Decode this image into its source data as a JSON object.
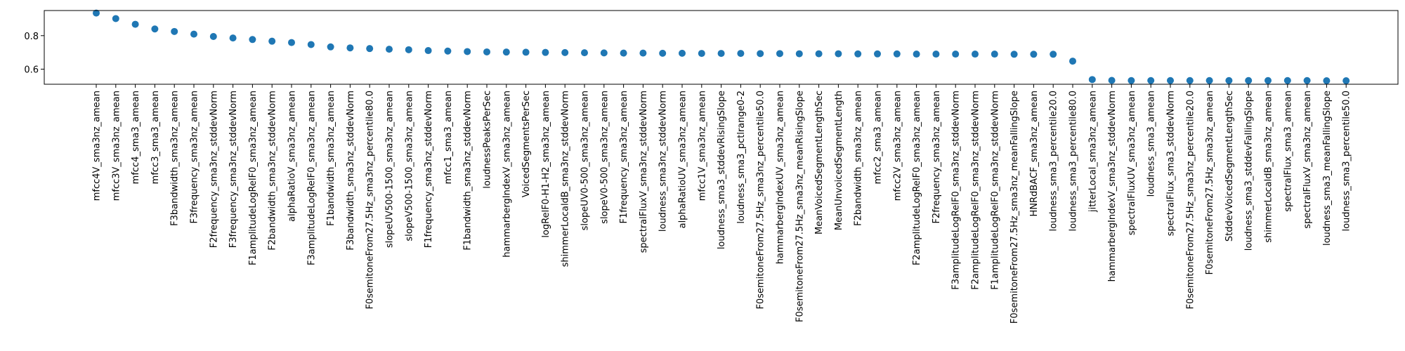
{
  "chart_data": {
    "type": "scatter",
    "title": "",
    "xlabel": "",
    "ylabel": "",
    "ylim": [
      0.51,
      0.95
    ],
    "yticks": [
      0.6,
      0.8
    ],
    "ytick_labels": [
      "0.6",
      "0.8"
    ],
    "grid": false,
    "legend": "none",
    "colors": {
      "marker": "#1f77b4",
      "axis": "#000000",
      "background": "#ffffff"
    },
    "categories": [
      "mfcc4V_sma3nz_amean",
      "mfcc3V_sma3nz_amean",
      "mfcc4_sma3_amean",
      "mfcc3_sma3_amean",
      "F3bandwidth_sma3nz_amean",
      "F3frequency_sma3nz_amean",
      "F2frequency_sma3nz_stddevNorm",
      "F3frequency_sma3nz_stddevNorm",
      "F1amplitudeLogRelF0_sma3nz_amean",
      "F2bandwidth_sma3nz_stddevNorm",
      "alphaRatioV_sma3nz_amean",
      "F3amplitudeLogRelF0_sma3nz_amean",
      "F1bandwidth_sma3nz_amean",
      "F3bandwidth_sma3nz_stddevNorm",
      "F0semitoneFrom27.5Hz_sma3nz_percentile80.0",
      "slopeUV500-1500_sma3nz_amean",
      "slopeV500-1500_sma3nz_amean",
      "F1frequency_sma3nz_stddevNorm",
      "mfcc1_sma3_amean",
      "F1bandwidth_sma3nz_stddevNorm",
      "loudnessPeaksPerSec",
      "hammarbergIndexV_sma3nz_amean",
      "VoicedSegmentsPerSec",
      "logRelF0-H1-H2_sma3nz_amean",
      "shimmerLocaldB_sma3nz_stddevNorm",
      "slopeUV0-500_sma3nz_amean",
      "slopeV0-500_sma3nz_amean",
      "F1frequency_sma3nz_amean",
      "spectralFluxV_sma3nz_stddevNorm",
      "loudness_sma3nz_stddevNorm",
      "alphaRatioUV_sma3nz_amean",
      "mfcc1V_sma3nz_amean",
      "loudness_sma3_stddevRisingSlope",
      "loudness_sma3_pctlrange0-2",
      "F0semitoneFrom27.5Hz_sma3nz_percentile50.0",
      "hammarbergIndexUV_sma3nz_amean",
      "F0semitoneFrom27.5Hz_sma3nz_meanRisingSlope",
      "MeanVoicedSegmentLengthSec",
      "MeanUnvoicedSegmentLength",
      "F2bandwidth_sma3nz_amean",
      "mfcc2_sma3_amean",
      "mfcc2V_sma3nz_amean",
      "F2amplitudeLogRelF0_sma3nz_amean",
      "F2frequency_sma3nz_amean",
      "F3amplitudeLogRelF0_sma3nz_stddevNorm",
      "F2amplitudeLogRelF0_sma3nz_stddevNorm",
      "F1amplitudeLogRelF0_sma3nz_stddevNorm",
      "F0semitoneFrom27.5Hz_sma3nz_meanFallingSlope",
      "HNRdBACF_sma3nz_amean",
      "loudness_sma3_percentile20.0",
      "loudness_sma3_percentile80.0",
      "jitterLocal_sma3nz_amean",
      "hammarbergIndexV_sma3nz_stddevNorm",
      "spectralFluxUV_sma3nz_amean",
      "loudness_sma3_amean",
      "spectralFlux_sma3_stddevNorm",
      "F0semitoneFrom27.5Hz_sma3nz_percentile20.0",
      "F0semitoneFrom27.5Hz_sma3nz_amean",
      "StddevVoicedSegmentLengthSec",
      "loudness_sma3_stddevFallingSlope",
      "shimmerLocaldB_sma3nz_amean",
      "spectralFlux_sma3_amean",
      "spectralFluxV_sma3nz_amean",
      "loudness_sma3_meanFallingSlope",
      "loudness_sma3_percentile50.0"
    ],
    "values": [
      0.935,
      0.902,
      0.868,
      0.84,
      0.825,
      0.809,
      0.795,
      0.786,
      0.777,
      0.767,
      0.759,
      0.747,
      0.733,
      0.727,
      0.723,
      0.719,
      0.716,
      0.711,
      0.708,
      0.705,
      0.703,
      0.702,
      0.701,
      0.7,
      0.699,
      0.698,
      0.697,
      0.696,
      0.696,
      0.695,
      0.695,
      0.694,
      0.694,
      0.694,
      0.693,
      0.693,
      0.692,
      0.692,
      0.692,
      0.691,
      0.691,
      0.691,
      0.69,
      0.69,
      0.69,
      0.69,
      0.69,
      0.689,
      0.689,
      0.689,
      0.648,
      0.538,
      0.533,
      0.532,
      0.532,
      0.532,
      0.532,
      0.532,
      0.532,
      0.532,
      0.532,
      0.532,
      0.532,
      0.531,
      0.531
    ]
  }
}
